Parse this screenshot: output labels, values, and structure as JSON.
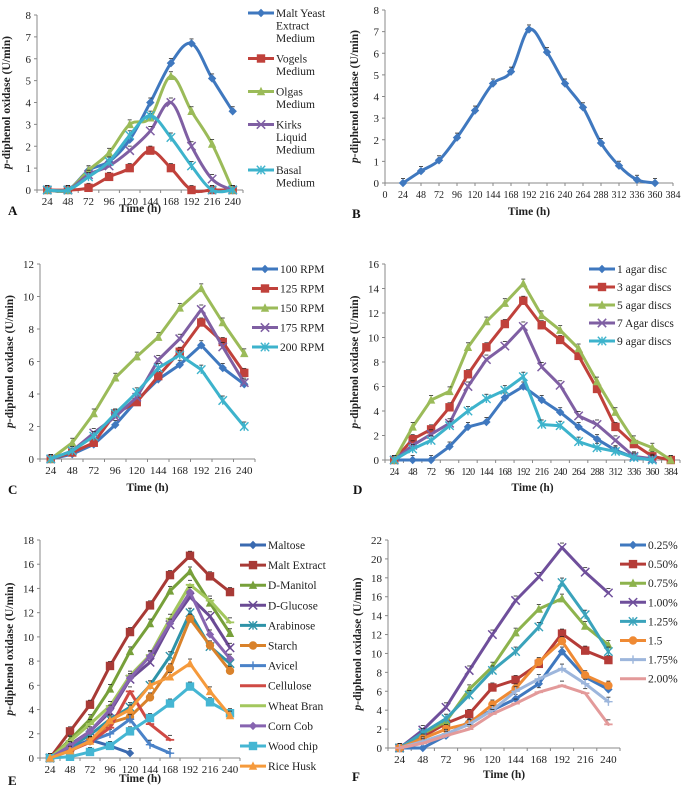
{
  "chart_data": [
    {
      "panel": "A",
      "type": "line",
      "title": "",
      "xlabel": "Time (h)",
      "ylabel": "p-diphenol oxidase (U/min)",
      "ylim": [
        0,
        8
      ],
      "yticks": [
        0,
        1,
        2,
        3,
        4,
        5,
        6,
        7,
        8
      ],
      "categories": [
        "24",
        "48",
        "72",
        "96",
        "120",
        "144",
        "168",
        "192",
        "216",
        "240"
      ],
      "legend_position": "right",
      "series": [
        {
          "name": "Malt Yeast Extract Medium",
          "legend_lines": [
            "Malt Yeast",
            "Extract",
            "Medium"
          ],
          "color": "#3f78bf",
          "marker": "diamond",
          "values": [
            0,
            0,
            0.9,
            1.3,
            2.3,
            4.0,
            5.8,
            6.7,
            5.1,
            3.6
          ]
        },
        {
          "name": "Vogels Medium",
          "legend_lines": [
            "Vogels",
            "Medium"
          ],
          "color": "#c0413b",
          "marker": "square",
          "values": [
            0,
            0,
            0.1,
            0.6,
            1.0,
            1.8,
            1.0,
            0,
            0,
            0
          ]
        },
        {
          "name": "Olgas Medium",
          "legend_lines": [
            "Olgas",
            "Medium"
          ],
          "color": "#9bbb59",
          "marker": "triangle",
          "values": [
            0,
            0,
            0.9,
            1.7,
            3.0,
            3.3,
            5.2,
            3.6,
            2.1,
            0
          ]
        },
        {
          "name": "Kirks Liquid Medium",
          "legend_lines": [
            "Kirks",
            "Liquid",
            "Medium"
          ],
          "color": "#7f5fa3",
          "marker": "x",
          "values": [
            0,
            0,
            0.7,
            1.1,
            1.8,
            2.7,
            4.0,
            2.0,
            0.5,
            0
          ]
        },
        {
          "name": "Basal Medium",
          "legend_lines": [
            "Basal",
            "Medium"
          ],
          "color": "#3db3cc",
          "marker": "star",
          "values": [
            0,
            0,
            0.6,
            1.3,
            2.5,
            3.4,
            2.4,
            1.1,
            0,
            0
          ]
        }
      ]
    },
    {
      "panel": "B",
      "type": "line",
      "title": "",
      "xlabel": "Time (h)",
      "ylabel": "p-diphenol oxidase (U/min)",
      "ylim": [
        0,
        8
      ],
      "yticks": [
        0,
        1,
        2,
        3,
        4,
        5,
        6,
        7,
        8
      ],
      "xlim": [
        0,
        384
      ],
      "xticks": [
        0,
        24,
        48,
        72,
        96,
        120,
        144,
        168,
        192,
        216,
        240,
        264,
        288,
        312,
        336,
        360,
        384
      ],
      "series": [
        {
          "name": "p-diphenol oxidase",
          "color": "#3f78bf",
          "marker": "diamond",
          "x": [
            24,
            48,
            72,
            96,
            120,
            144,
            168,
            192,
            216,
            240,
            264,
            288,
            312,
            336,
            360
          ],
          "values": [
            0,
            0.55,
            1.05,
            2.1,
            3.35,
            4.6,
            5.15,
            7.1,
            6.05,
            4.6,
            3.5,
            1.85,
            0.8,
            0.15,
            0
          ]
        }
      ]
    },
    {
      "panel": "C",
      "type": "line",
      "title": "",
      "xlabel": "Time (h)",
      "ylabel": "p-diphenol oxidase (U/min)",
      "ylim": [
        0,
        12
      ],
      "yticks": [
        0,
        2,
        4,
        6,
        8,
        10,
        12
      ],
      "categories": [
        "24",
        "48",
        "72",
        "96",
        "120",
        "144",
        "168",
        "192",
        "216",
        "240"
      ],
      "legend_position": "top-right",
      "series": [
        {
          "name": "100 RPM",
          "color": "#3f78bf",
          "marker": "diamond",
          "values": [
            0,
            0.3,
            0.9,
            2.1,
            3.6,
            4.9,
            5.8,
            7.0,
            5.6,
            4.6
          ]
        },
        {
          "name": "125 RPM",
          "color": "#c0413b",
          "marker": "square",
          "values": [
            0,
            0.4,
            1.0,
            2.8,
            3.5,
            5.1,
            6.6,
            8.4,
            7.2,
            5.3
          ]
        },
        {
          "name": "150 RPM",
          "color": "#9bbb59",
          "marker": "triangle",
          "values": [
            0,
            1.0,
            2.8,
            5.0,
            6.3,
            7.5,
            9.3,
            10.5,
            8.4,
            6.5
          ]
        },
        {
          "name": "175 RPM",
          "color": "#7f5fa3",
          "marker": "x",
          "values": [
            0,
            0.5,
            1.6,
            2.6,
            3.8,
            6.1,
            7.4,
            9.2,
            6.9,
            4.7
          ]
        },
        {
          "name": "200 RPM",
          "color": "#3db3cc",
          "marker": "star",
          "values": [
            0,
            0.5,
            1.4,
            2.8,
            4.1,
            5.6,
            6.4,
            5.5,
            3.6,
            2.0
          ]
        }
      ]
    },
    {
      "panel": "D",
      "type": "line",
      "title": "",
      "xlabel": "Time (h)",
      "ylabel": "p-diphenol oxidase (U/min)",
      "ylim": [
        0,
        16
      ],
      "yticks": [
        0,
        2,
        4,
        6,
        8,
        10,
        12,
        14,
        16
      ],
      "categories": [
        "24",
        "48",
        "72",
        "96",
        "120",
        "144",
        "168",
        "192",
        "216",
        "240",
        "264",
        "288",
        "312",
        "336",
        "360",
        "384"
      ],
      "legend_position": "top-right",
      "series": [
        {
          "name": "1 agar disc",
          "color": "#3f78bf",
          "marker": "diamond",
          "values": [
            0,
            0,
            0,
            1.1,
            2.7,
            3.1,
            5.1,
            6.0,
            4.9,
            3.9,
            2.7,
            1.7,
            0.8,
            0.2,
            0,
            null
          ]
        },
        {
          "name": "3 agar discs",
          "color": "#c0413b",
          "marker": "square",
          "values": [
            0,
            1.7,
            2.5,
            4.3,
            7.0,
            9.2,
            11.1,
            13.0,
            11.0,
            9.8,
            8.5,
            5.8,
            2.7,
            1.3,
            0.3,
            0
          ]
        },
        {
          "name": "5 agar discs",
          "color": "#9bbb59",
          "marker": "triangle",
          "values": [
            0,
            2.7,
            4.9,
            5.6,
            9.2,
            11.3,
            12.8,
            14.4,
            11.8,
            10.6,
            9.1,
            6.4,
            3.9,
            1.6,
            1.0,
            0
          ]
        },
        {
          "name": "7 Agar discs",
          "color": "#7f5fa3",
          "marker": "x",
          "values": [
            0,
            1.2,
            2.1,
            3.0,
            6.0,
            8.2,
            9.3,
            10.9,
            7.6,
            6.1,
            3.6,
            2.9,
            1.6,
            0.3,
            0.1,
            null
          ]
        },
        {
          "name": "9 agar discs",
          "color": "#3db3cc",
          "marker": "star",
          "values": [
            0,
            0.9,
            1.6,
            2.8,
            4.0,
            5.0,
            5.7,
            6.8,
            2.9,
            2.8,
            1.5,
            1.0,
            0.7,
            0.2,
            0,
            null
          ]
        }
      ]
    },
    {
      "panel": "E",
      "type": "line",
      "title": "",
      "xlabel": "Time (h)",
      "ylabel": "p-diphenol oxidase (U/min)",
      "ylim": [
        0,
        18
      ],
      "yticks": [
        0,
        2,
        4,
        6,
        8,
        10,
        12,
        14,
        16,
        18
      ],
      "categories": [
        "24",
        "48",
        "72",
        "96",
        "120",
        "144",
        "168",
        "192",
        "216",
        "240"
      ],
      "legend_position": "right",
      "series": [
        {
          "name": "Maltose",
          "color": "#3a6ab0",
          "marker": "diamond",
          "values": [
            0,
            0.8,
            1.5,
            1.0,
            0.4,
            null,
            null,
            null,
            null,
            null
          ]
        },
        {
          "name": "Malt Extract",
          "color": "#a83a36",
          "marker": "square",
          "values": [
            0,
            2.2,
            4.4,
            7.6,
            10.4,
            12.6,
            15.1,
            16.7,
            15.0,
            13.7
          ]
        },
        {
          "name": "D-Manitol",
          "color": "#77a03a",
          "marker": "triangle",
          "values": [
            0,
            1.5,
            3.2,
            5.7,
            8.8,
            11.1,
            13.8,
            15.4,
            12.8,
            10.3
          ]
        },
        {
          "name": "D-Glucose",
          "color": "#6a4a94",
          "marker": "x",
          "values": [
            0,
            1.1,
            2.2,
            3.8,
            6.5,
            7.9,
            11.0,
            13.3,
            11.7,
            9.1
          ]
        },
        {
          "name": "Arabinose",
          "color": "#2e93a8",
          "marker": "star",
          "values": [
            0,
            0.9,
            1.9,
            3.2,
            4.2,
            6.0,
            8.4,
            12.0,
            9.2,
            7.8
          ]
        },
        {
          "name": "Starch",
          "color": "#d9822b",
          "marker": "circle",
          "values": [
            0,
            0.6,
            1.4,
            2.9,
            3.4,
            5.0,
            7.4,
            11.5,
            9.3,
            7.2
          ]
        },
        {
          "name": "Avicel",
          "color": "#4a82c8",
          "marker": "plus",
          "values": [
            0,
            0.7,
            1.4,
            2.0,
            3.2,
            1.1,
            0.4,
            null,
            null,
            null
          ]
        },
        {
          "name": "Cellulose",
          "color": "#cf4a44",
          "marker": "dash",
          "values": [
            0,
            0.6,
            1.3,
            2.5,
            5.5,
            2.8,
            1.5,
            null,
            null,
            null
          ]
        },
        {
          "name": "Wheat Bran",
          "color": "#a3c75e",
          "marker": "dash",
          "values": [
            0,
            1.4,
            2.8,
            4.3,
            6.8,
            8.5,
            11.5,
            14.3,
            13.0,
            11.2
          ]
        },
        {
          "name": "Corn Cob",
          "color": "#8764b0",
          "marker": "diamond",
          "values": [
            0,
            1.0,
            2.2,
            4.0,
            6.6,
            8.4,
            11.1,
            13.7,
            10.2,
            8.2
          ]
        },
        {
          "name": "Wood chip",
          "color": "#45b6d3",
          "marker": "square",
          "values": [
            0,
            0.1,
            0.5,
            1.0,
            2.2,
            3.3,
            4.5,
            5.9,
            4.6,
            3.7
          ]
        },
        {
          "name": "Rice Husk",
          "color": "#f59a3c",
          "marker": "triangle",
          "values": [
            0,
            0.6,
            1.4,
            3.1,
            4.0,
            6.0,
            6.7,
            7.8,
            5.5,
            3.5
          ]
        }
      ]
    },
    {
      "panel": "F",
      "type": "line",
      "title": "",
      "xlabel": "Time (h)",
      "ylabel": "p-diphenol oxidase (U/min)",
      "ylim": [
        0,
        22
      ],
      "yticks": [
        0,
        2,
        4,
        6,
        8,
        10,
        12,
        14,
        16,
        18,
        20,
        22
      ],
      "categories": [
        "24",
        "48",
        "72",
        "96",
        "120",
        "144",
        "168",
        "192",
        "216",
        "240"
      ],
      "legend_position": "right",
      "series": [
        {
          "name": "0.25%",
          "color": "#3f78bf",
          "marker": "diamond",
          "values": [
            0,
            0,
            1.3,
            2.8,
            4.0,
            5.2,
            6.8,
            10.2,
            7.5,
            6.2
          ]
        },
        {
          "name": "0.50%",
          "color": "#b53c38",
          "marker": "square",
          "values": [
            0,
            1.2,
            2.6,
            3.6,
            6.4,
            7.2,
            8.9,
            12.1,
            10.3,
            9.3
          ]
        },
        {
          "name": "0.75%",
          "color": "#8db34d",
          "marker": "triangle",
          "values": [
            0,
            1.5,
            2.8,
            6.2,
            8.6,
            12.2,
            14.7,
            15.8,
            12.9,
            10.9
          ]
        },
        {
          "name": "1.00%",
          "color": "#6f4f9b",
          "marker": "x",
          "values": [
            0,
            1.9,
            4.3,
            8.2,
            12.0,
            15.6,
            18.1,
            21.2,
            18.6,
            16.4
          ]
        },
        {
          "name": "1.25%",
          "color": "#3aa3bb",
          "marker": "star",
          "values": [
            0,
            1.6,
            3.1,
            5.6,
            8.2,
            10.2,
            12.8,
            17.5,
            14.1,
            10.2
          ]
        },
        {
          "name": "1.5",
          "color": "#ef8a34",
          "marker": "circle",
          "values": [
            0,
            1.0,
            2.0,
            2.6,
            4.6,
            6.3,
            9.1,
            11.3,
            7.7,
            6.6
          ]
        },
        {
          "name": "1.75%",
          "color": "#9db6dc",
          "marker": "plus",
          "values": [
            0,
            0.7,
            1.5,
            2.5,
            4.0,
            6.0,
            7.3,
            8.4,
            6.8,
            4.9
          ]
        },
        {
          "name": "2.00%",
          "color": "#e39a9a",
          "marker": "dash",
          "values": [
            0,
            0.5,
            1.3,
            2.0,
            3.6,
            4.7,
            5.9,
            6.6,
            5.8,
            2.5
          ]
        }
      ]
    }
  ]
}
